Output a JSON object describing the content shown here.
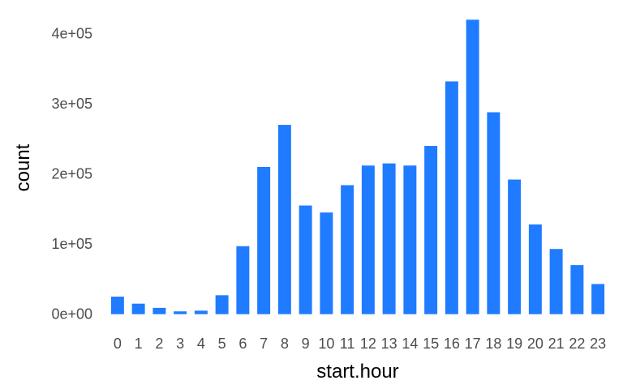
{
  "chart_data": {
    "type": "bar",
    "title": "",
    "xlabel": "start.hour",
    "ylabel": "count",
    "categories": [
      "0",
      "1",
      "2",
      "3",
      "4",
      "5",
      "6",
      "7",
      "8",
      "9",
      "10",
      "11",
      "12",
      "13",
      "14",
      "15",
      "16",
      "17",
      "18",
      "19",
      "20",
      "21",
      "22",
      "23"
    ],
    "values": [
      25000,
      15000,
      9000,
      4000,
      5000,
      27000,
      97000,
      210000,
      270000,
      155000,
      145000,
      184000,
      212000,
      215000,
      212000,
      240000,
      332000,
      420000,
      288000,
      192000,
      128000,
      93000,
      70000,
      43000
    ],
    "ylim": [
      -5000,
      425000
    ],
    "yticks": [
      0,
      100000,
      200000,
      300000,
      400000
    ],
    "ytick_labels": [
      "0e+00",
      "1e+05",
      "2e+05",
      "3e+05",
      "4e+05"
    ],
    "bar_color": "#1F7BFF",
    "grid": false,
    "legend": "none"
  }
}
